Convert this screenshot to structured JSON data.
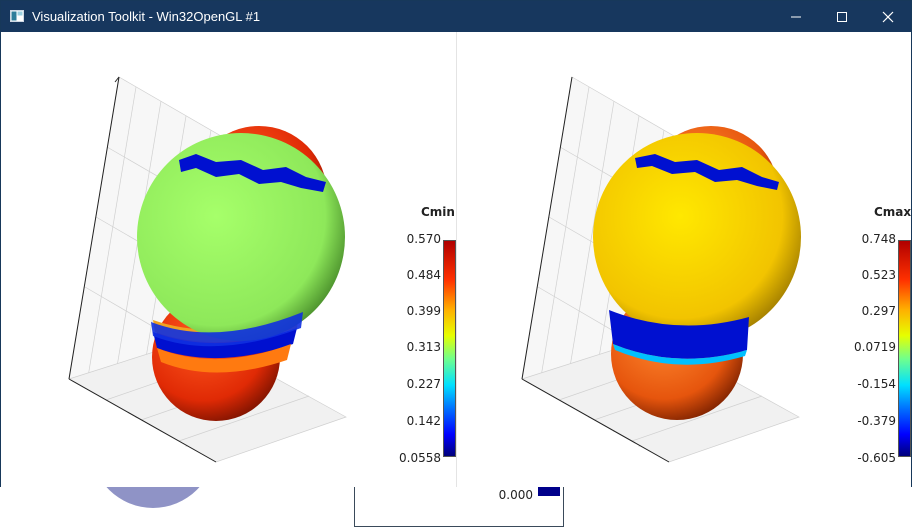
{
  "window": {
    "title": "Visualization Toolkit - Win32OpenGL #1",
    "icons": {
      "app": "vtk-window-icon",
      "minimize": "minimize-icon",
      "maximize": "maximize-icon",
      "close": "close-icon"
    }
  },
  "left_view": {
    "colorbar": {
      "title": "Cmin",
      "ticks": [
        "0.570",
        "0.484",
        "0.399",
        "0.313",
        "0.227",
        "0.142",
        "0.0558"
      ]
    }
  },
  "right_view": {
    "colorbar": {
      "title": "Cmax",
      "ticks": [
        "0.748",
        "0.523",
        "0.297",
        "0.0719",
        "-0.154",
        "-0.379",
        "-0.605"
      ]
    }
  },
  "background_window": {
    "label": "0.000",
    "swatch_color": "#00008b"
  },
  "colors": {
    "titlebar": "#17375e",
    "sphere_top": "#e8300a",
    "left_middle": "#92f25a",
    "right_middle": "#f2c400",
    "band": "#0010d0"
  }
}
